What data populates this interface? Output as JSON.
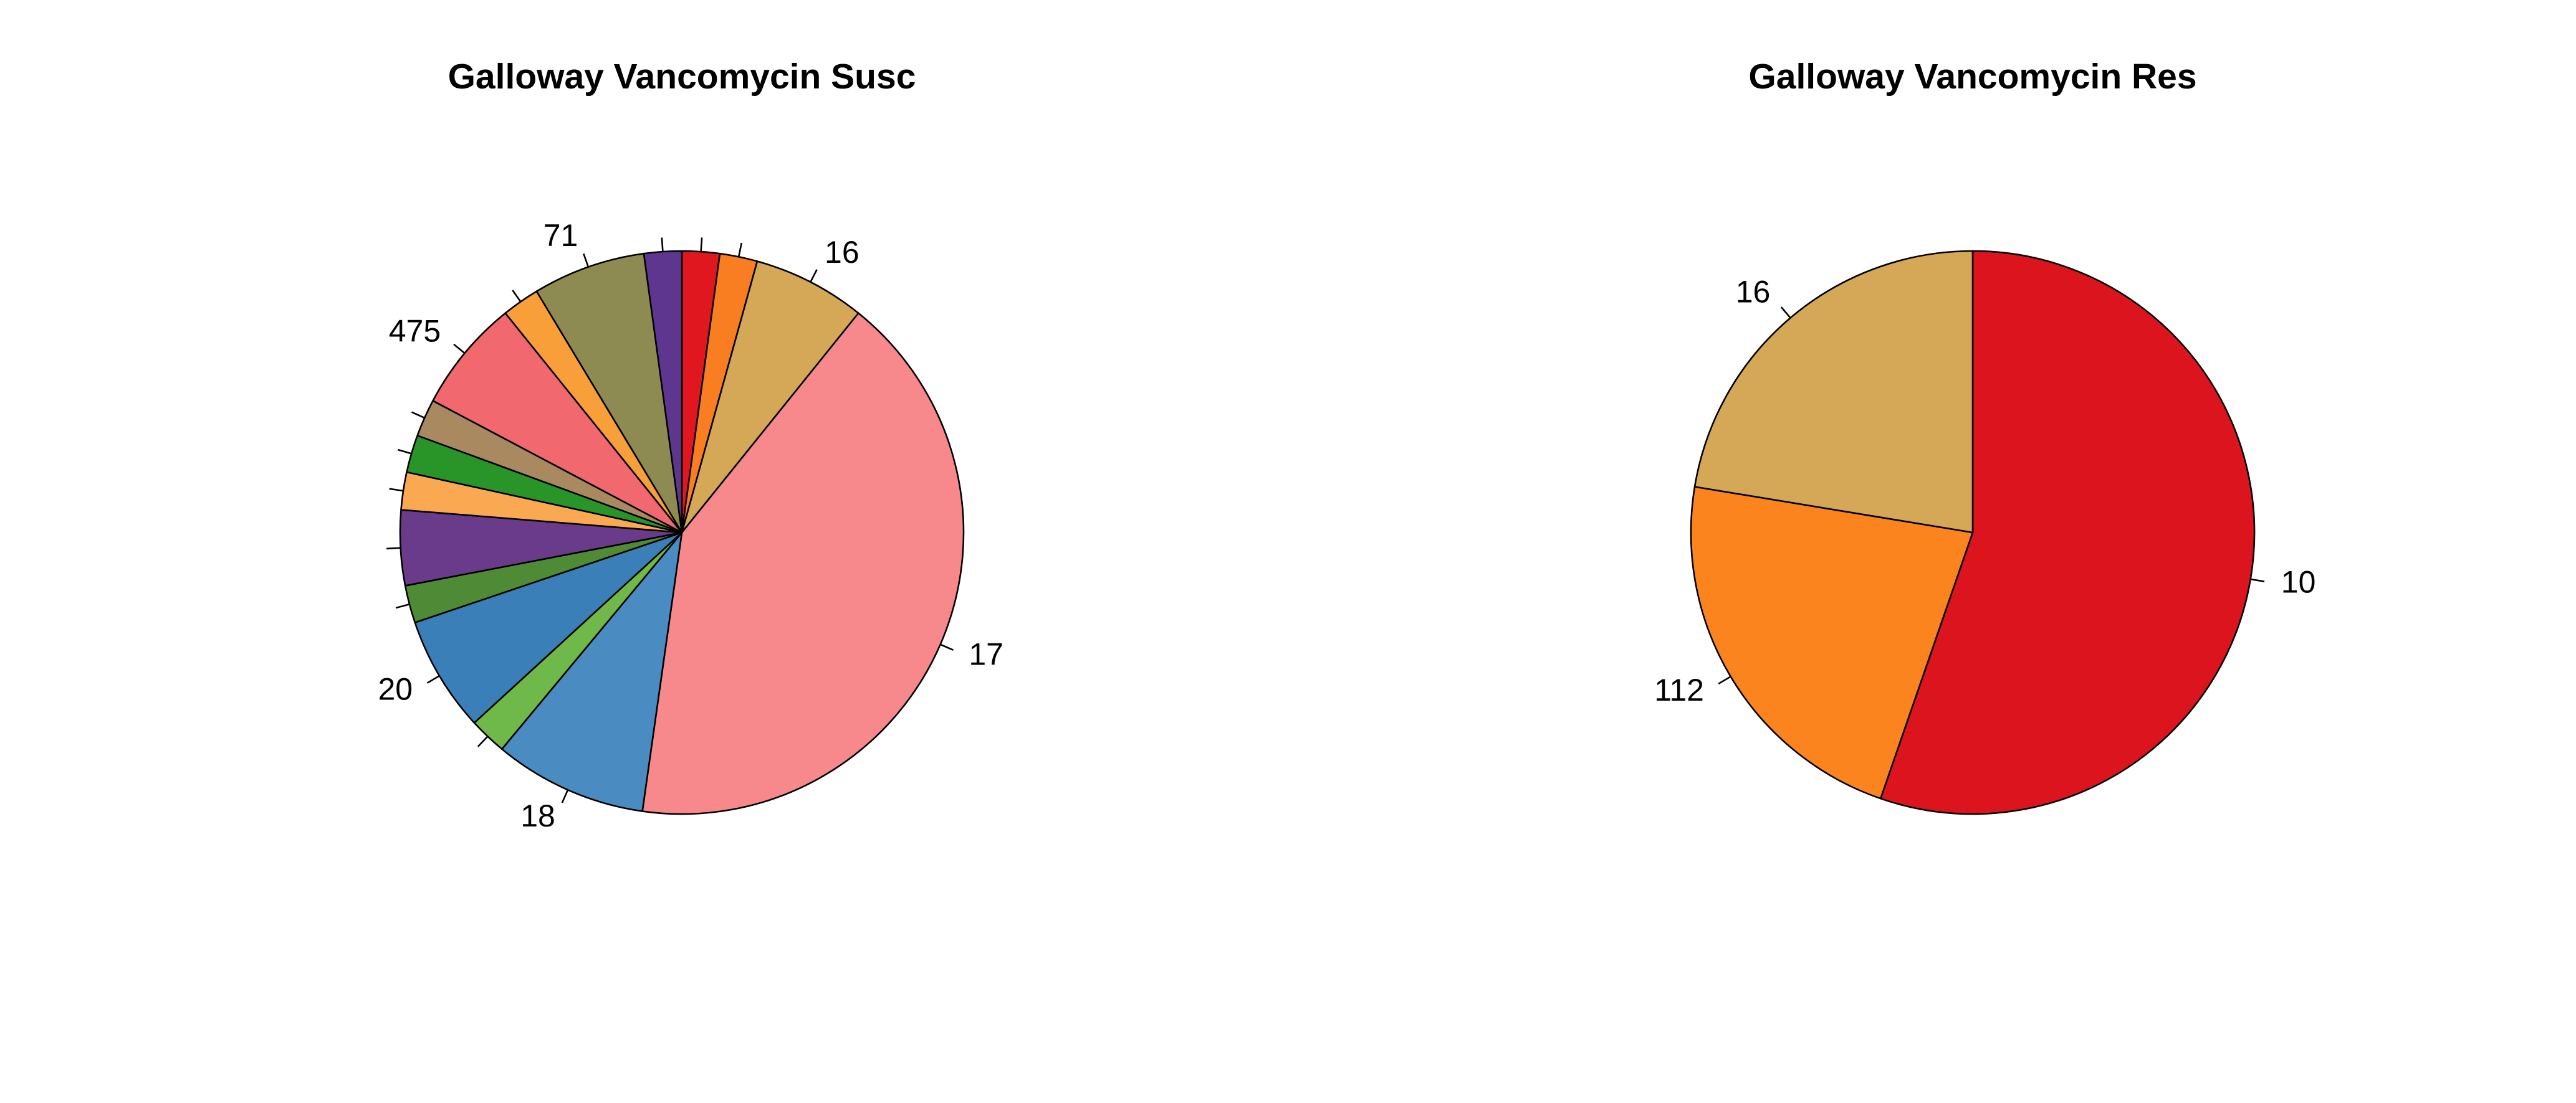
{
  "chart_data": [
    {
      "type": "pie",
      "title": "Galloway Vancomycin Susc",
      "direction": "clockwise",
      "start": "top",
      "slices": [
        {
          "label": "",
          "value": 1.3,
          "color": "#E0171F"
        },
        {
          "label": "",
          "value": 1.3,
          "color": "#F97D21"
        },
        {
          "label": "16",
          "value": 3.9,
          "color": "#D4A857"
        },
        {
          "label": "17",
          "value": 25.0,
          "color": "#F7888C"
        },
        {
          "label": "18",
          "value": 5.3,
          "color": "#4A8BC2"
        },
        {
          "label": "",
          "value": 1.3,
          "color": "#6FB84A"
        },
        {
          "label": "20",
          "value": 4.0,
          "color": "#3A7FB8"
        },
        {
          "label": "",
          "value": 1.3,
          "color": "#4F8B36"
        },
        {
          "label": "",
          "value": 2.6,
          "color": "#693B8A"
        },
        {
          "label": "",
          "value": 1.3,
          "color": "#FBA852"
        },
        {
          "label": "",
          "value": 1.3,
          "color": "#299427"
        },
        {
          "label": "",
          "value": 1.3,
          "color": "#A9895F"
        },
        {
          "label": "475",
          "value": 3.9,
          "color": "#F1686F"
        },
        {
          "label": "",
          "value": 1.3,
          "color": "#F99F3A"
        },
        {
          "label": "71",
          "value": 3.9,
          "color": "#8E8B52"
        },
        {
          "label": "",
          "value": 1.3,
          "color": "#5E3690"
        }
      ]
    },
    {
      "type": "pie",
      "title": "Galloway Vancomycin Res",
      "direction": "clockwise",
      "start": "top",
      "slices": [
        {
          "label": "10",
          "value": 55.3,
          "color": "#DC141E"
        },
        {
          "label": "112",
          "value": 22.3,
          "color": "#FB841E"
        },
        {
          "label": "16",
          "value": 22.4,
          "color": "#D4A857"
        }
      ]
    }
  ]
}
